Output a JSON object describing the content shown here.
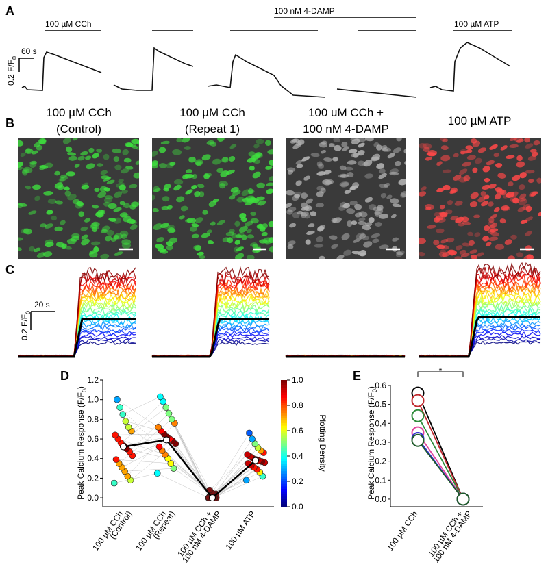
{
  "panel_a": {
    "letter": "A",
    "treatments": [
      "100 µM CCh",
      "100 nM 4-DAMP",
      "100 µM ATP"
    ],
    "time_scale": "60 s",
    "amp_scale": "0.2 F/F",
    "amp_scale_sub": "0"
  },
  "panel_b": {
    "letter": "B",
    "titles": [
      [
        "100 µM CCh",
        "(Control)"
      ],
      [
        "100 µM CCh",
        "(Repeat 1)"
      ],
      [
        "100 uM CCh +",
        "100 nM 4-DAMP"
      ],
      [
        "100 µM ATP"
      ]
    ]
  },
  "panel_c": {
    "letter": "C",
    "time_scale": "20 s",
    "amp_scale": "0.2 F/F",
    "amp_scale_sub": "0"
  },
  "chart_data": [
    {
      "type": "scatter",
      "letter": "D",
      "y_label": "Peak Calcium Response (F/F",
      "y_label_sub": "0",
      "y_label_end": ")",
      "categories": [
        [
          "100 µM CCh",
          "(Control)"
        ],
        [
          "100 µM CCh",
          "(Repeat)"
        ],
        [
          "100 µM CCh +",
          "100 nM 4-DAMP"
        ],
        [
          "100 µM ATP"
        ]
      ],
      "points": [
        [
          0.15,
          0.18,
          0.22,
          0.27,
          0.31,
          0.35,
          0.39,
          0.43,
          0.47,
          0.5,
          0.53,
          0.56,
          0.6,
          0.64,
          0.68,
          0.72,
          0.78,
          0.85,
          0.92,
          1.0
        ],
        [
          0.25,
          0.3,
          0.35,
          0.4,
          0.44,
          0.48,
          0.52,
          0.55,
          0.58,
          0.6,
          0.62,
          0.65,
          0.68,
          0.72,
          0.76,
          0.8,
          0.86,
          0.92,
          0.98,
          1.03
        ],
        [
          0,
          0,
          0.01,
          0,
          0.02,
          0,
          0.01,
          0,
          0.03,
          0,
          0,
          0.01,
          0.02,
          0,
          0.04,
          0,
          0.01,
          0.05,
          0,
          0.08
        ],
        [
          0.18,
          0.22,
          0.26,
          0.29,
          0.31,
          0.33,
          0.35,
          0.36,
          0.37,
          0.38,
          0.39,
          0.4,
          0.42,
          0.44,
          0.46,
          0.48,
          0.51,
          0.55,
          0.6,
          0.66
        ]
      ],
      "means": [
        0.52,
        0.59,
        0.0,
        0.38
      ],
      "ylim": [
        -0.09,
        1.2
      ],
      "yticks": [
        {
          "value": 0,
          "label": "0.0"
        },
        0.2,
        0.4,
        0.6,
        0.8,
        {
          "value": 1,
          "label": "1.0"
        },
        1.2
      ],
      "colorbar": {
        "label": "Plotting Density",
        "lim": [
          0,
          1
        ],
        "ticks": [
          {
            "value": 0,
            "label": "0.0"
          },
          0.2,
          0.4,
          0.6,
          0.8,
          {
            "value": 1,
            "label": "1.0"
          }
        ]
      }
    },
    {
      "type": "paired",
      "letter": "E",
      "y_label": "Peak Calcium Response (F/F",
      "y_label_sub": "0",
      "y_label_end": ")",
      "categories": [
        [
          "100 µM CCh"
        ],
        [
          "100 µM CCh +",
          "100 nM 4-DAMP"
        ]
      ],
      "series": [
        {
          "color": "#000000",
          "values": [
            0.56,
            0.0
          ]
        },
        {
          "color": "#c0282d",
          "values": [
            0.52,
            0.0
          ]
        },
        {
          "color": "#2e8b3a",
          "values": [
            0.44,
            0.0
          ]
        },
        {
          "color": "#e0409a",
          "values": [
            0.35,
            0.0
          ]
        },
        {
          "color": "#3030d0",
          "values": [
            0.32,
            0.0
          ]
        },
        {
          "color": "#1e5a2a",
          "values": [
            0.31,
            0.0
          ]
        }
      ],
      "ylim": [
        -0.04,
        0.6
      ],
      "yticks": [
        {
          "value": 0,
          "label": "0.0"
        },
        0.1,
        0.2,
        0.3,
        0.4,
        0.5,
        0.6
      ],
      "significance": "*"
    }
  ]
}
